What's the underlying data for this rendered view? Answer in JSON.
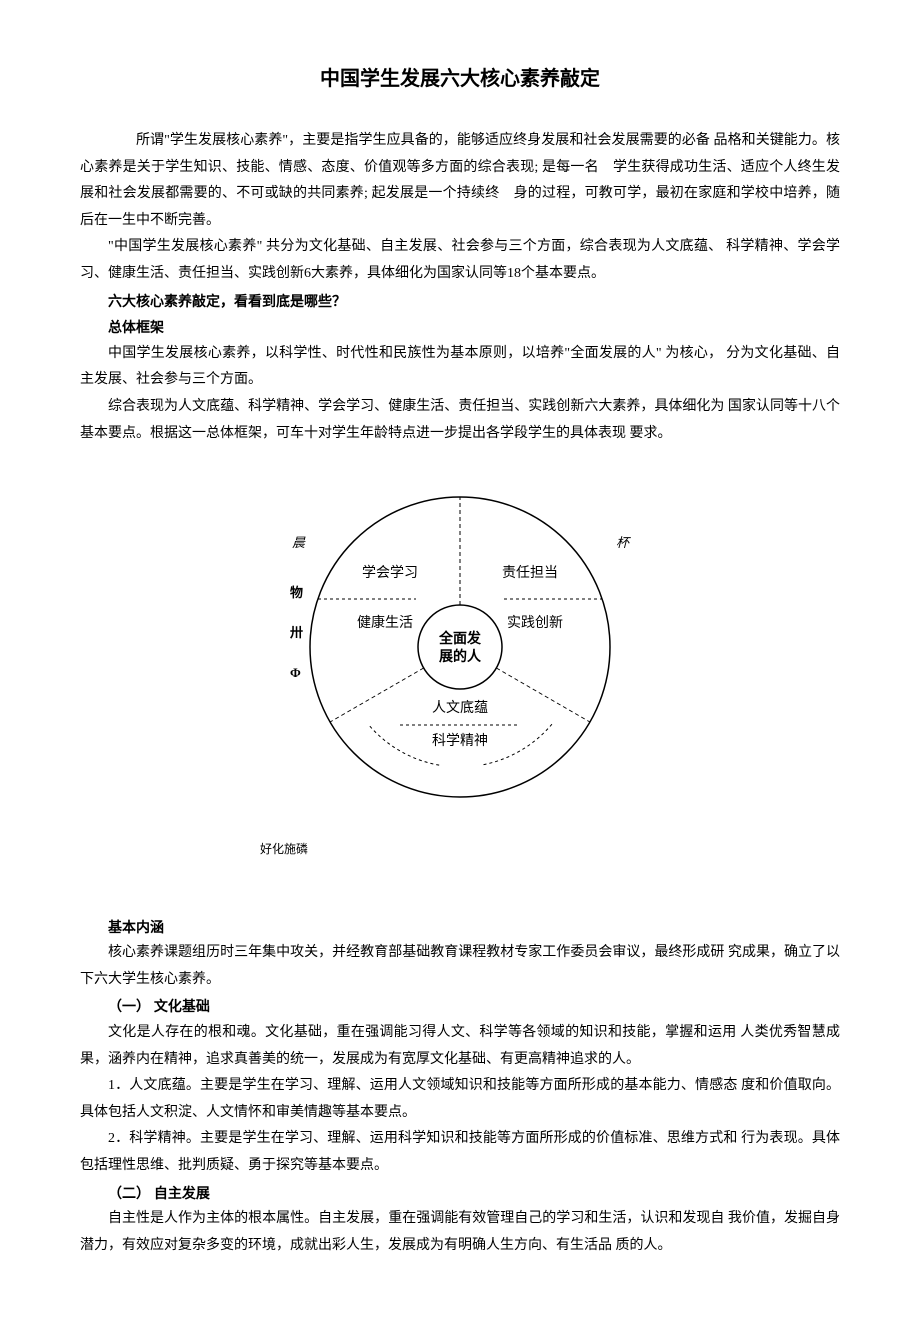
{
  "title": "中国学生发展六大核心素养敲定",
  "p1": "所谓\"学生发展核心素养\"，主要是指学生应具备的，能够适应终身发展和社会发展需要的必备 品格和关键能力。核心素养是关于学生知识、技能、情感、态度、价值观等多方面的综合表现; 是每一名　学生获得成功生活、适应个人终生发展和社会发展都需要的、不可或缺的共同素养; 起发展是一个持续终　身的过程，可教可学，最初在家庭和学校中培养，随后在一生中不断完善。",
  "p2": "\"中国学生发展核心素养\" 共分为文化基础、自主发展、社会参与三个方面，综合表现为人文底蕴、 科学精神、学会学习、健康生活、责任担当、实践创新6大素养，具体细化为国家认同等18个基本要点。",
  "h_six": "六大核心素养敲定，看看到底是哪些？",
  "h_framework": "总体框架",
  "p3": "中国学生发展核心素养，以科学性、时代性和民族性为基本原则，以培养\"全面发展的人\" 为核心， 分为文化基础、自主发展、社会参与三个方面。",
  "p4": "综合表现为人文底蕴、科学精神、学会学习、健康生活、责任担当、实践创新六大素养，具体细化为 国家认同等十八个基本要点。根据这一总体框架，可车十对学生年龄特点进一步提出各学段学生的具体表现 要求。",
  "diagram": {
    "center_line1": "全面发",
    "center_line2": "展的人",
    "top_left": "学会学习",
    "top_right": "责任担当",
    "mid_left": "健康生活",
    "mid_right": "实践创新",
    "bottom1": "人文底蕴",
    "bottom2": "科学精神",
    "deco_tl": "晨",
    "deco_tr": "杯",
    "deco_ml": "物",
    "deco_mr": "",
    "deco_bl": "卅",
    "deco_br": "",
    "deco_bbl": "Φ",
    "deco_bbr": "",
    "stroke": "#000000",
    "fill_bg": "#ffffff",
    "text_color": "#000000",
    "font_size_label": 14,
    "font_size_center": 14,
    "outer_r": 150,
    "inner_r": 42
  },
  "caption": "好化施磷",
  "h_connotation": "基本内涵",
  "p5": "核心素养课题组历时三年集中攻关，并经教育部基础教育课程教材专家工作委员会审议，最终形成研 究成果，确立了以下六大学生核心素养。",
  "h_s1": "（一） 文化基础",
  "p6": "文化是人存在的根和魂。文化基础，重在强调能习得人文、科学等各领域的知识和技能，掌握和运用 人类优秀智慧成果，涵养内在精神，追求真善美的统一，发展成为有宽厚文化基础、有更高精神追求的人。",
  "p7": "1．人文底蕴。主要是学生在学习、理解、运用人文领域知识和技能等方面所形成的基本能力、情感态 度和价值取向。具体包括人文积淀、人文情怀和审美情趣等基本要点。",
  "p8": "2．科学精神。主要是学生在学习、理解、运用科学知识和技能等方面所形成的价值标准、思维方式和 行为表现。具体包括理性思维、批判质疑、勇于探究等基本要点。",
  "h_s2": "（二） 自主发展",
  "p9": "自主性是人作为主体的根本属性。自主发展，重在强调能有效管理自己的学习和生活，认识和发现自 我价值，发掘自身潜力，有效应对复杂多变的环境，成就出彩人生，发展成为有明确人生方向、有生活品 质的人。"
}
